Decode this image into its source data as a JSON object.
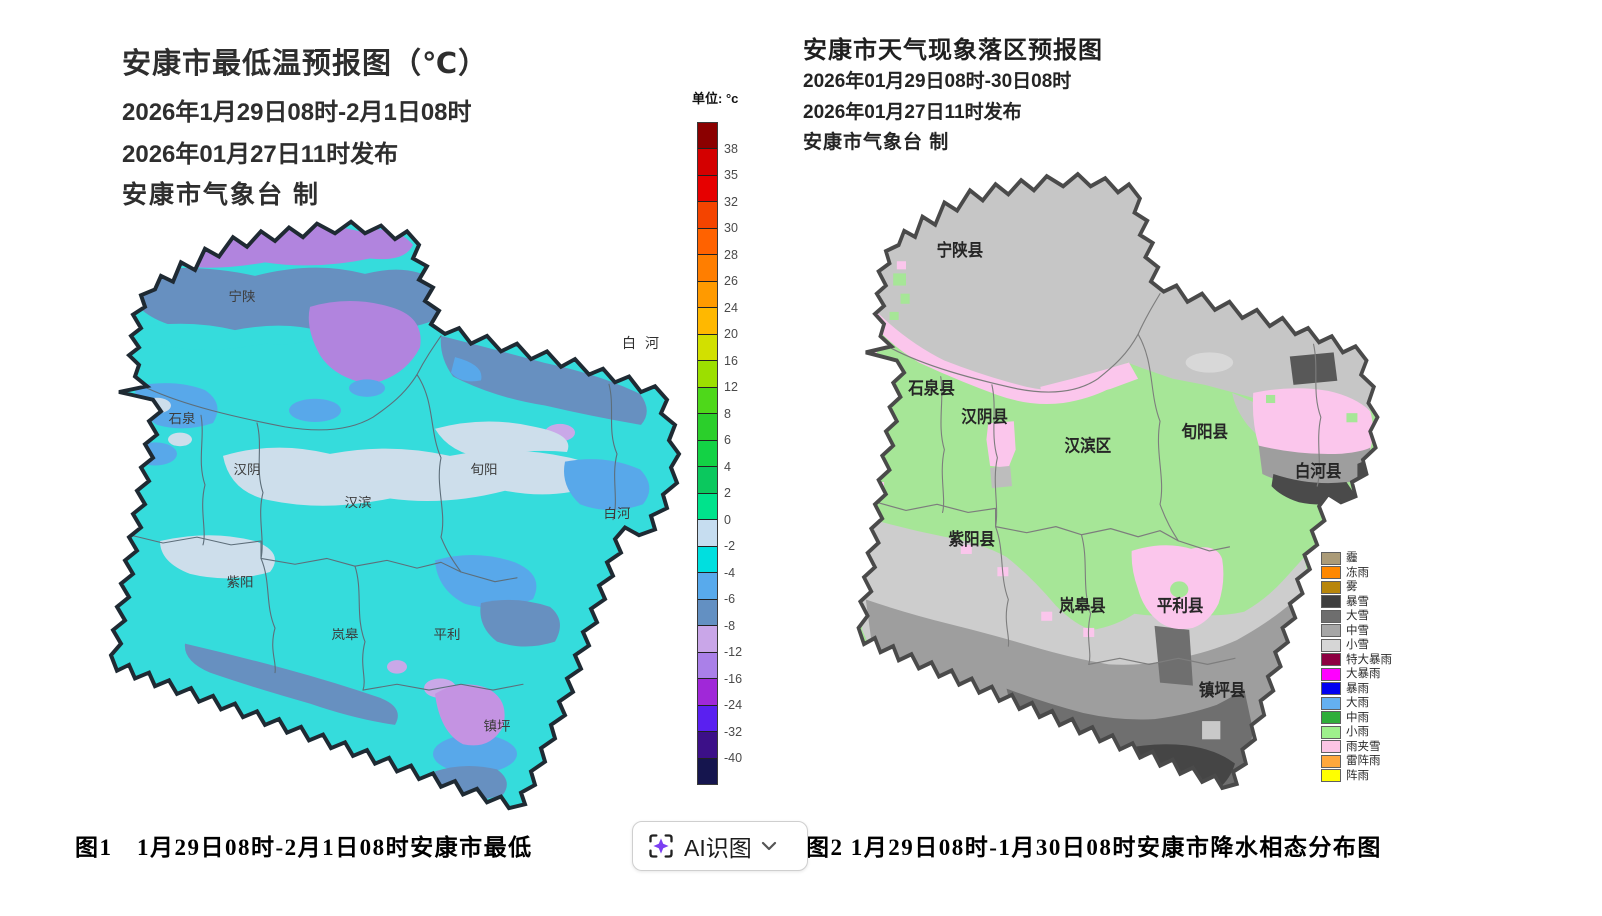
{
  "left_map": {
    "title": "安康市最低温预报图（℃）",
    "period": "2026年1月29日08时-2月1日08时",
    "issued": "2026年01月27日11时发布",
    "producer": "安康市气象台 制",
    "floating_label": "白河",
    "region_labels": [
      "宁陕",
      "石泉",
      "汉阴",
      "汉滨",
      "旬阳",
      "白河",
      "紫阳",
      "岚皋",
      "平利",
      "镇坪"
    ],
    "caption": "图1　1月29日08时-2月1日08时安康市最低",
    "colorbar": {
      "unit_label": "单位: °c",
      "tick_labels": [
        "38",
        "35",
        "32",
        "30",
        "28",
        "26",
        "24",
        "20",
        "16",
        "12",
        "8",
        "6",
        "4",
        "2",
        "0",
        "-2",
        "-4",
        "-6",
        "-8",
        "-12",
        "-16",
        "-24",
        "-32",
        "-40"
      ],
      "block_colors": [
        "#8b0000",
        "#d40000",
        "#e60000",
        "#f44400",
        "#ff6200",
        "#ff7e00",
        "#ff9a00",
        "#ffb800",
        "#d2e000",
        "#9cdf00",
        "#4ed81a",
        "#2bcf2b",
        "#13d245",
        "#0bc85e",
        "#00e38c",
        "#c6ddf0",
        "#00dfdf",
        "#58aaec",
        "#6390c2",
        "#c9a6e8",
        "#aa80e8",
        "#a028d8",
        "#5a20f0",
        "#3c1088",
        "#15154e"
      ]
    }
  },
  "right_map": {
    "title": "安康市天气现象落区预报图",
    "period": "2026年01月29日08时-30日08时",
    "issued": "2026年01月27日11时发布",
    "producer": "安康市气象台 制",
    "region_labels": [
      "宁陕县",
      "石泉县",
      "汉阴县",
      "汉滨区",
      "旬阳县",
      "白河县",
      "紫阳县",
      "岚皋县",
      "平利县",
      "镇坪县"
    ],
    "caption": "图2 1月29日08时-1月30日08时安康市降水相态分布图",
    "legend_items": [
      {
        "label": "霾",
        "color": "#ab9b78"
      },
      {
        "label": "冻雨",
        "color": "#ff8800"
      },
      {
        "label": "雾",
        "color": "#b8860b"
      },
      {
        "label": "暴雪",
        "color": "#3f3f3f"
      },
      {
        "label": "大雪",
        "color": "#6e6e6e"
      },
      {
        "label": "中雪",
        "color": "#a6a6a6"
      },
      {
        "label": "小雪",
        "color": "#d6d6d6"
      },
      {
        "label": "特大暴雨",
        "color": "#8d0042"
      },
      {
        "label": "大暴雨",
        "color": "#ff00ff"
      },
      {
        "label": "暴雨",
        "color": "#0000f0"
      },
      {
        "label": "大雨",
        "color": "#64b0f0"
      },
      {
        "label": "中雨",
        "color": "#2fae3a"
      },
      {
        "label": "小雨",
        "color": "#9ef08c"
      },
      {
        "label": "雨夹雪",
        "color": "#fcc4e4"
      },
      {
        "label": "雷阵雨",
        "color": "#ffa83c"
      },
      {
        "label": "阵雨",
        "color": "#ffff00"
      }
    ]
  },
  "ai_button": {
    "label": "AI识图",
    "star_color": "#7b3ff2"
  }
}
